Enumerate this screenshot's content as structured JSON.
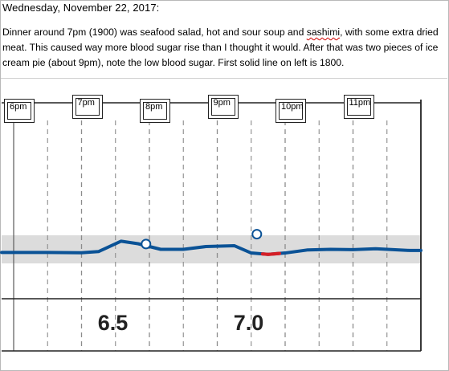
{
  "document": {
    "heading": "Wednesday, November 22, 2017:",
    "para_part1": "Dinner around 7pm (1900) was seafood salad, hot and sour soup and ",
    "para_misspelled": "sashimi",
    "para_part2": ", with some extra dried meat.  This caused way more blood sugar rise than I thought it would. After that was two pieces of ice cream pie (about 9pm), note the low blood sugar.  First solid line on left is 1800."
  },
  "chart_data": {
    "type": "line",
    "title": "",
    "time_labels": [
      "6pm",
      "7pm",
      "8pm",
      "9pm",
      "10pm",
      "11pm"
    ],
    "target_band": "shaded",
    "series": [
      {
        "values": [
          {
            "t": "18:00",
            "y": 0.39
          },
          {
            "t": "18:30",
            "y": 0.39
          },
          {
            "t": "19:00",
            "y": 0.38
          },
          {
            "t": "19:15",
            "y": 0.42
          },
          {
            "t": "19:35",
            "y": 0.79
          },
          {
            "t": "19:50",
            "y": 0.7
          },
          {
            "t": "20:10",
            "y": 0.5
          },
          {
            "t": "20:30",
            "y": 0.5
          },
          {
            "t": "20:50",
            "y": 0.6
          },
          {
            "t": "21:15",
            "y": 0.63
          },
          {
            "t": "21:30",
            "y": 0.37
          },
          {
            "t": "21:45",
            "y": 0.32
          },
          {
            "t": "22:00",
            "y": 0.37
          },
          {
            "t": "22:20",
            "y": 0.48
          },
          {
            "t": "22:40",
            "y": 0.5
          },
          {
            "t": "23:00",
            "y": 0.49
          },
          {
            "t": "23:20",
            "y": 0.52
          },
          {
            "t": "23:50",
            "y": 0.46
          }
        ],
        "low_segment": [
          "21:40",
          "21:55"
        ]
      }
    ],
    "events": [
      {
        "t": "19:57",
        "y": 0.69
      },
      {
        "t": "21:35",
        "y": 1.04
      }
    ],
    "readings": [
      {
        "label": "6.5"
      },
      {
        "label": "7.0"
      }
    ]
  },
  "colors": {
    "line": "#0a5296",
    "low": "#d41f26",
    "band": "#dcdcdc",
    "grid": "#8c8c8c"
  }
}
